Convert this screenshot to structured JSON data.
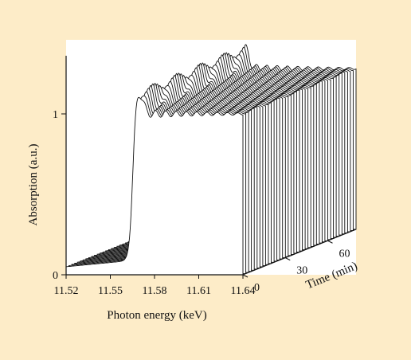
{
  "colors": {
    "page_background": "#fdecc8",
    "plot_background": "#ffffff",
    "ink": "#111111"
  },
  "chart_data": {
    "type": "line",
    "subtype": "3d-waterfall",
    "title": "",
    "xlabel": "Photon energy (keV)",
    "ylabel": "Absorption (a.u.)",
    "zlabel": "Time (min)",
    "x_ticks": [
      "11.52",
      "11.55",
      "11.58",
      "11.61",
      "11.64"
    ],
    "y_ticks": [
      "0",
      "1"
    ],
    "z_ticks": [
      "0",
      "30",
      "60"
    ],
    "xlim": [
      11.52,
      11.64
    ],
    "ylim": [
      0,
      1.3
    ],
    "zlim": [
      0,
      80
    ],
    "grid": false,
    "legend": "none",
    "series_count": 41,
    "series_time_min": [
      0,
      80
    ],
    "edge_energy_keV_start": 11.565,
    "edge_energy_keV_end": 11.56,
    "pre_edge_absorption": 0.05,
    "post_edge_absorption": 1.0,
    "white_line_peak_absorption": 1.15
  }
}
